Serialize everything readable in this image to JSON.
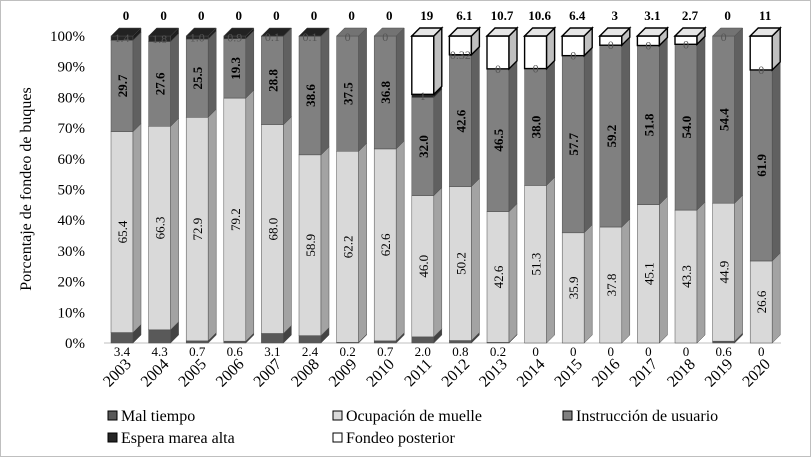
{
  "chart_data": {
    "type": "bar",
    "stacked": true,
    "percent_stacked": true,
    "three_d": true,
    "ylabel": "Porcentaje  de fondeo de buques",
    "xlabel": "",
    "ylim": [
      0,
      100
    ],
    "y_ticks": [
      "0%",
      "10%",
      "20%",
      "30%",
      "40%",
      "50%",
      "60%",
      "70%",
      "80%",
      "90%",
      "100%"
    ],
    "categories": [
      "2003",
      "2004",
      "2005",
      "2006",
      "2007",
      "2008",
      "2009",
      "2010",
      "2011",
      "2012",
      "2013",
      "2014",
      "2015",
      "2016",
      "2017",
      "2018",
      "2019",
      "2020"
    ],
    "legend_position": "bottom",
    "grid": false,
    "series": [
      {
        "name": "Mal tiempo",
        "color": "#595959",
        "values": [
          3.4,
          4.3,
          0.7,
          0.6,
          3.1,
          2.4,
          0.2,
          0.7,
          2.0,
          0.8,
          0.2,
          0,
          0,
          0,
          0,
          0,
          0.6,
          0
        ],
        "labels": [
          "3.4",
          "4.3",
          "0.7",
          "0.6",
          "3.1",
          "2.4",
          "0.2",
          "0.7",
          "2.0",
          "0.8",
          "0.2",
          "0",
          "0",
          "0",
          "0",
          "0",
          "0.6",
          "0"
        ]
      },
      {
        "name": "Ocupación de muelle",
        "color": "#d9d9d9",
        "values": [
          65.4,
          66.3,
          72.9,
          79.2,
          68.0,
          58.9,
          62.2,
          62.6,
          46.0,
          50.2,
          42.6,
          51.3,
          35.9,
          37.8,
          45.1,
          43.3,
          44.9,
          26.6
        ],
        "labels": [
          "65.4",
          "66.3",
          "72.9",
          "79.2",
          "68.0",
          "58.9",
          "62.2",
          "62.6",
          "46.0",
          "50.2",
          "42.6",
          "51.3",
          "35.9",
          "37.8",
          "45.1",
          "43.3",
          "44.9",
          "26.6"
        ]
      },
      {
        "name": "Instrucción de usuario",
        "color": "#808080",
        "values": [
          29.7,
          27.6,
          25.5,
          19.3,
          28.8,
          38.6,
          37.5,
          36.8,
          32.0,
          42.6,
          46.5,
          38.0,
          57.7,
          59.2,
          51.8,
          54.0,
          54.4,
          61.9
        ],
        "labels": [
          "29.7",
          "27.6",
          "25.5",
          "19.3",
          "28.8",
          "38.6",
          "37.5",
          "36.8",
          "32.0",
          "42.6",
          "46.5",
          "38.0",
          "57.7",
          "59.2",
          "51.8",
          "54.0",
          "54.4",
          "61.9"
        ]
      },
      {
        "name": "Espera marea alta",
        "color": "#262626",
        "values": [
          1.4,
          1.8,
          1.0,
          0.9,
          0.1,
          0.1,
          0,
          0,
          1,
          0.32,
          0,
          0,
          0,
          0,
          0,
          0,
          0,
          0
        ],
        "labels": [
          "1.4",
          "1.8",
          "1.0",
          "0.9",
          "0.1",
          "0.1",
          "0",
          "0",
          "1",
          "0.32",
          "0",
          "0",
          "0",
          "0",
          "0",
          "0",
          "0",
          "0"
        ]
      },
      {
        "name": "Fondeo posterior",
        "color": "#ffffff",
        "values": [
          0,
          0,
          0,
          0,
          0,
          0,
          0,
          0,
          19,
          6.1,
          10.7,
          10.6,
          6.4,
          3,
          3.1,
          2.7,
          0,
          11
        ],
        "labels": [
          "0",
          "0",
          "0",
          "0",
          "0",
          "0",
          "0",
          "0",
          "19",
          "6.1",
          "10.7",
          "10.6",
          "6.4",
          "3",
          "3.1",
          "2.7",
          "0",
          "11"
        ]
      }
    ]
  }
}
